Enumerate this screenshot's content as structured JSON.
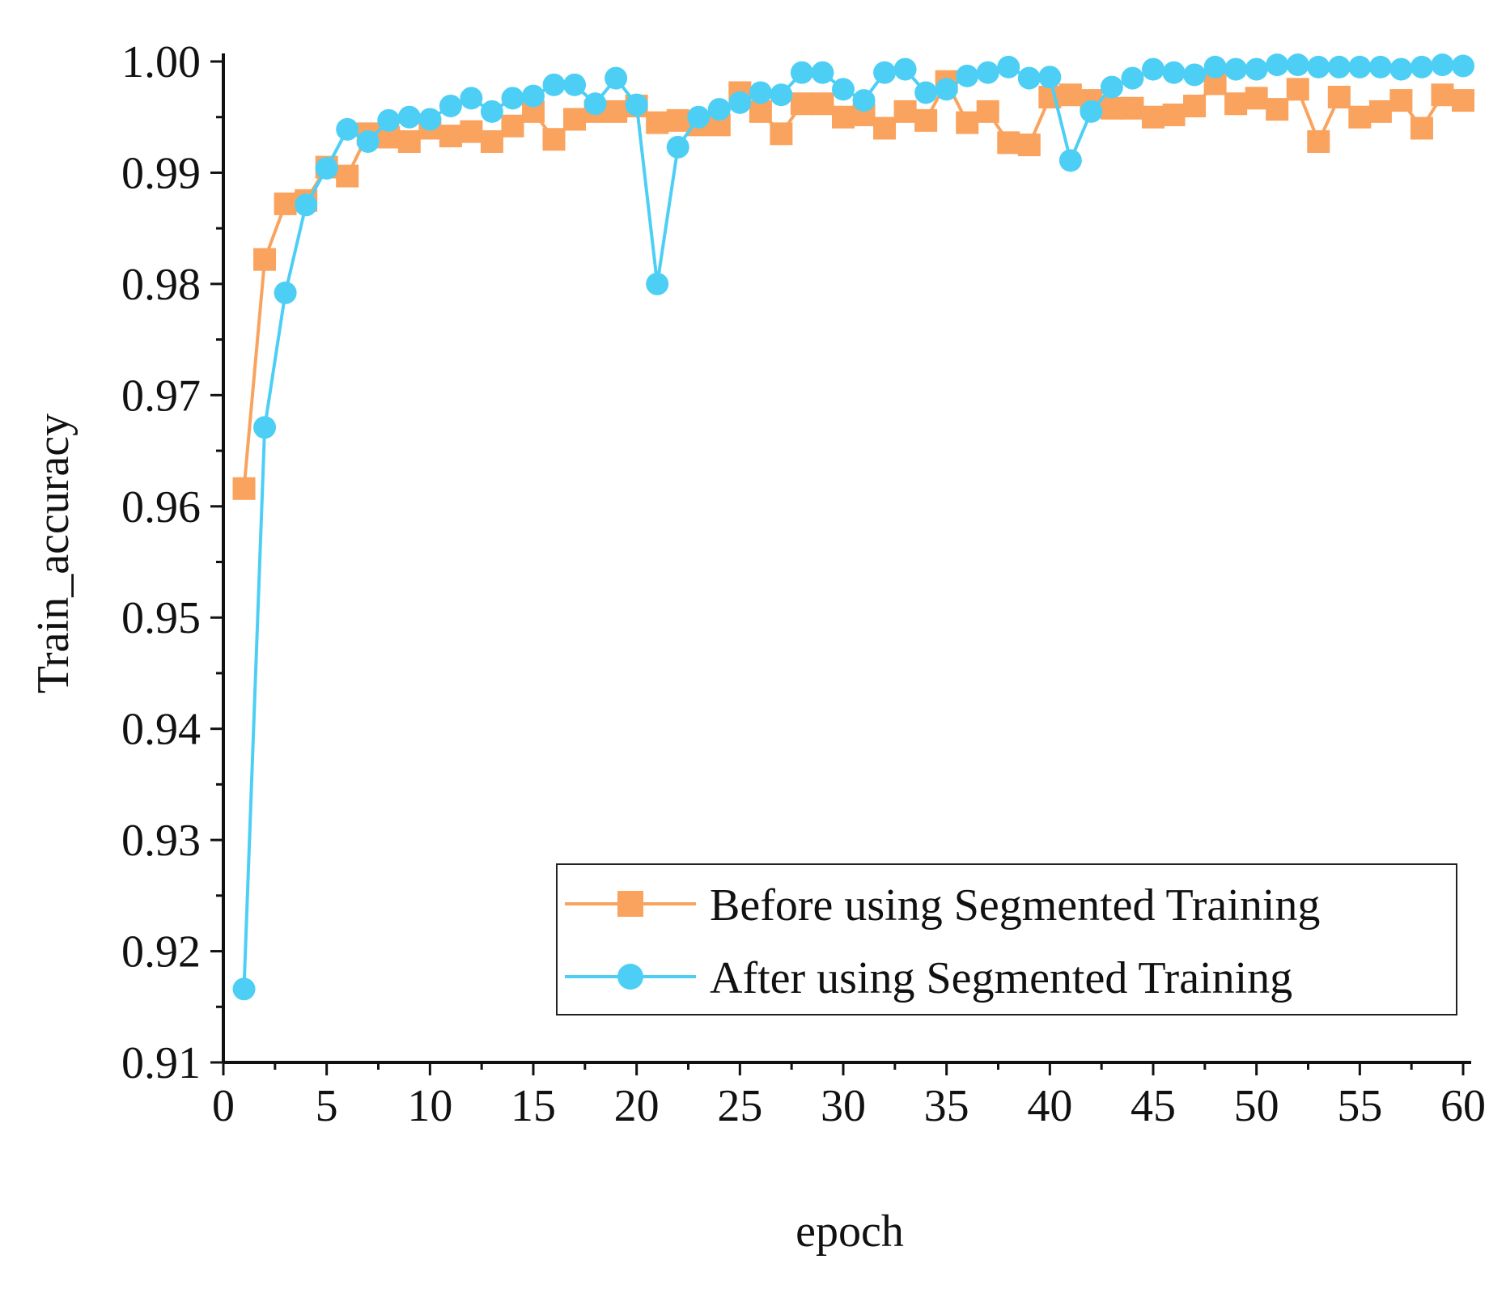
{
  "chart_data": {
    "type": "line",
    "title": "",
    "xlabel": "epoch",
    "ylabel": "Train_accuracy",
    "xlim": [
      0,
      60
    ],
    "ylim": [
      0.91,
      1.0
    ],
    "xticks": [
      0,
      5,
      10,
      15,
      20,
      25,
      30,
      35,
      40,
      45,
      50,
      55,
      60
    ],
    "xtick_labels": [
      "0",
      "5",
      "10",
      "15",
      "20",
      "25",
      "30",
      "35",
      "40",
      "45",
      "50",
      "55",
      "60"
    ],
    "yticks": [
      0.91,
      0.92,
      0.93,
      0.94,
      0.95,
      0.96,
      0.97,
      0.98,
      0.99,
      1.0
    ],
    "ytick_labels": [
      "0.91",
      "0.92",
      "0.93",
      "0.94",
      "0.95",
      "0.96",
      "0.97",
      "0.98",
      "0.99",
      "1.00"
    ],
    "grid": false,
    "legend_position": "bottom-right",
    "x": [
      1,
      2,
      3,
      4,
      5,
      6,
      7,
      8,
      9,
      10,
      11,
      12,
      13,
      14,
      15,
      16,
      17,
      18,
      19,
      20,
      21,
      22,
      23,
      24,
      25,
      26,
      27,
      28,
      29,
      30,
      31,
      32,
      33,
      34,
      35,
      36,
      37,
      38,
      39,
      40,
      41,
      42,
      43,
      44,
      45,
      46,
      47,
      48,
      49,
      50,
      51,
      52,
      53,
      54,
      55,
      56,
      57,
      58,
      59,
      60
    ],
    "series": [
      {
        "name": "Before using Segmented Training",
        "color": "#F9A35E",
        "marker": "square",
        "values": [
          0.9616,
          0.9822,
          0.9872,
          0.9875,
          0.9905,
          0.9897,
          0.9935,
          0.9932,
          0.9928,
          0.994,
          0.9933,
          0.9937,
          0.9928,
          0.9942,
          0.9955,
          0.993,
          0.9948,
          0.9955,
          0.9955,
          0.996,
          0.9945,
          0.9947,
          0.9943,
          0.9943,
          0.9972,
          0.9955,
          0.9935,
          0.9962,
          0.9962,
          0.995,
          0.9952,
          0.994,
          0.9955,
          0.9947,
          0.9982,
          0.9945,
          0.9955,
          0.9927,
          0.9925,
          0.9968,
          0.997,
          0.9965,
          0.9958,
          0.9958,
          0.995,
          0.9952,
          0.996,
          0.998,
          0.9962,
          0.9967,
          0.9957,
          0.9975,
          0.9928,
          0.9968,
          0.995,
          0.9955,
          0.9965,
          0.994,
          0.997,
          0.9965
        ]
      },
      {
        "name": "After using Segmented Training",
        "color": "#4DCFF5",
        "marker": "circle",
        "values": [
          0.9166,
          0.9671,
          0.9792,
          0.9871,
          0.9904,
          0.9939,
          0.9928,
          0.9947,
          0.995,
          0.9948,
          0.996,
          0.9967,
          0.9955,
          0.9967,
          0.9969,
          0.9979,
          0.9979,
          0.9962,
          0.9985,
          0.9961,
          0.98,
          0.9923,
          0.995,
          0.9957,
          0.9963,
          0.9972,
          0.997,
          0.999,
          0.999,
          0.9975,
          0.9965,
          0.999,
          0.9993,
          0.9972,
          0.9975,
          0.9987,
          0.999,
          0.9995,
          0.9985,
          0.9986,
          0.9911,
          0.9955,
          0.9977,
          0.9985,
          0.9993,
          0.999,
          0.9988,
          0.9995,
          0.9993,
          0.9993,
          0.9997,
          0.9997,
          0.9995,
          0.9995,
          0.9995,
          0.9995,
          0.9993,
          0.9995,
          0.9997,
          0.9996
        ]
      }
    ]
  }
}
